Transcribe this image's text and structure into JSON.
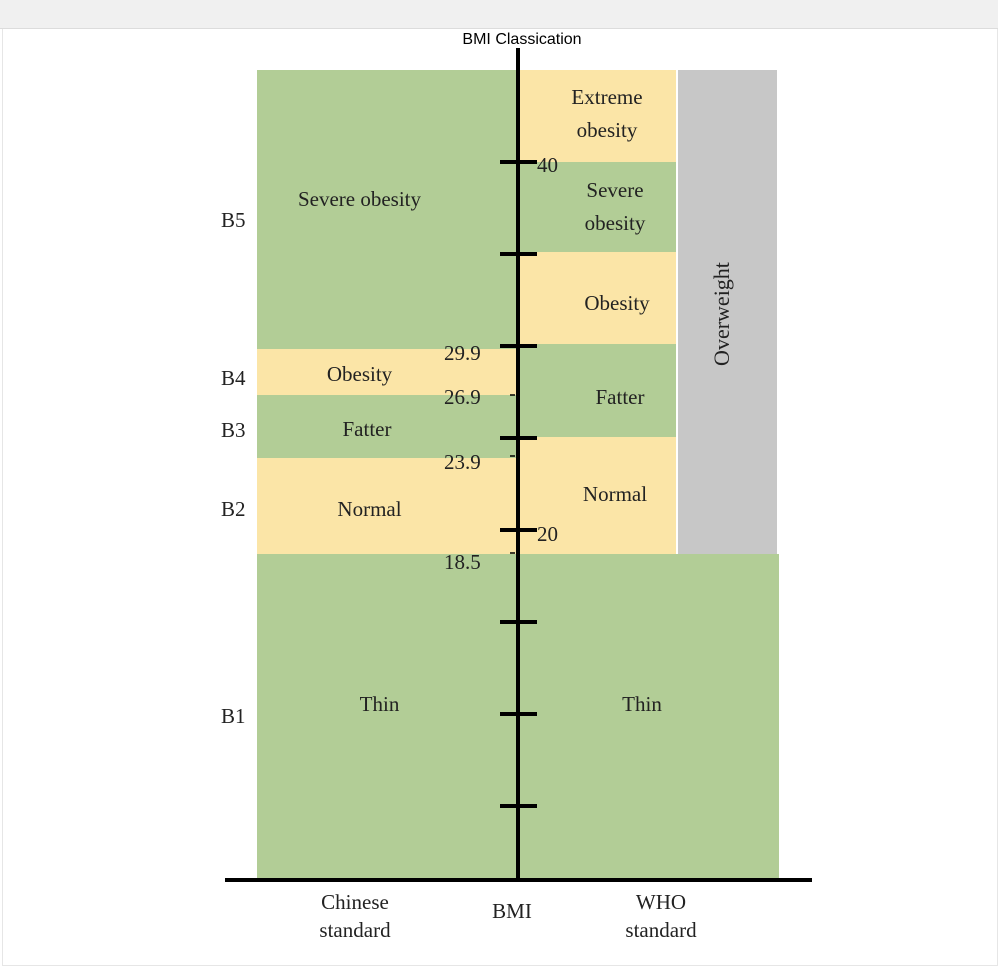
{
  "title": "BMI Classication",
  "colors": {
    "green": "#b2cd96",
    "yellow": "#fbe5a7",
    "gray": "#c7c7c7",
    "axis": "#000000"
  },
  "chinese_standard": {
    "label_line1": "Chinese",
    "label_line2": "standard",
    "bands": [
      {
        "id": "B5",
        "name": "Severe obesity",
        "color": "green"
      },
      {
        "id": "B4",
        "name": "Obesity",
        "color": "yellow"
      },
      {
        "id": "B3",
        "name": "Fatter",
        "color": "green"
      },
      {
        "id": "B2",
        "name": "Normal",
        "color": "yellow"
      },
      {
        "id": "B1",
        "name": "Thin",
        "color": "green"
      }
    ],
    "thresholds": [
      "29.9",
      "26.9",
      "23.9",
      "18.5"
    ]
  },
  "who_standard": {
    "label_line1": "WHO",
    "label_line2": "standard",
    "bands": [
      {
        "line1": "Extreme",
        "line2": "obesity",
        "color": "yellow"
      },
      {
        "line1": "Severe",
        "line2": "obesity",
        "color": "green"
      },
      {
        "line1": "Obesity",
        "line2": "",
        "color": "yellow"
      },
      {
        "line1": "Fatter",
        "line2": "",
        "color": "green"
      },
      {
        "line1": "Normal",
        "line2": "",
        "color": "yellow"
      },
      {
        "line1": "Thin",
        "line2": "",
        "color": "green"
      }
    ],
    "overweight_label": "Overweight",
    "tick_labels": [
      "40",
      "20"
    ]
  },
  "axis_label": "BMI"
}
